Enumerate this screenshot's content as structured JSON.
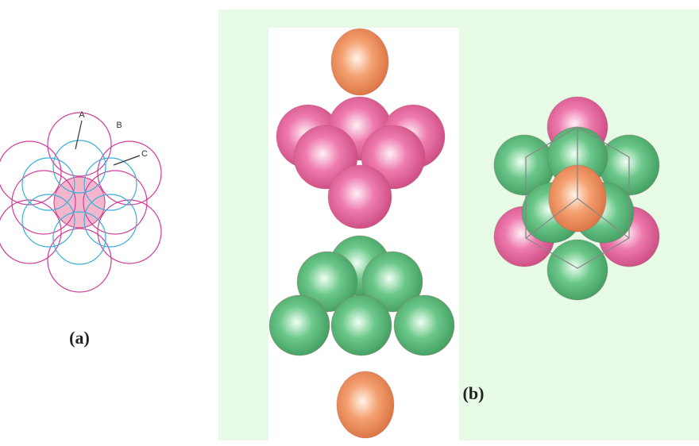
{
  "labels": {
    "a_point": "A",
    "b_point": "B",
    "c_point": "C"
  },
  "captions": {
    "a": "(a)",
    "b": "(b)"
  }
}
